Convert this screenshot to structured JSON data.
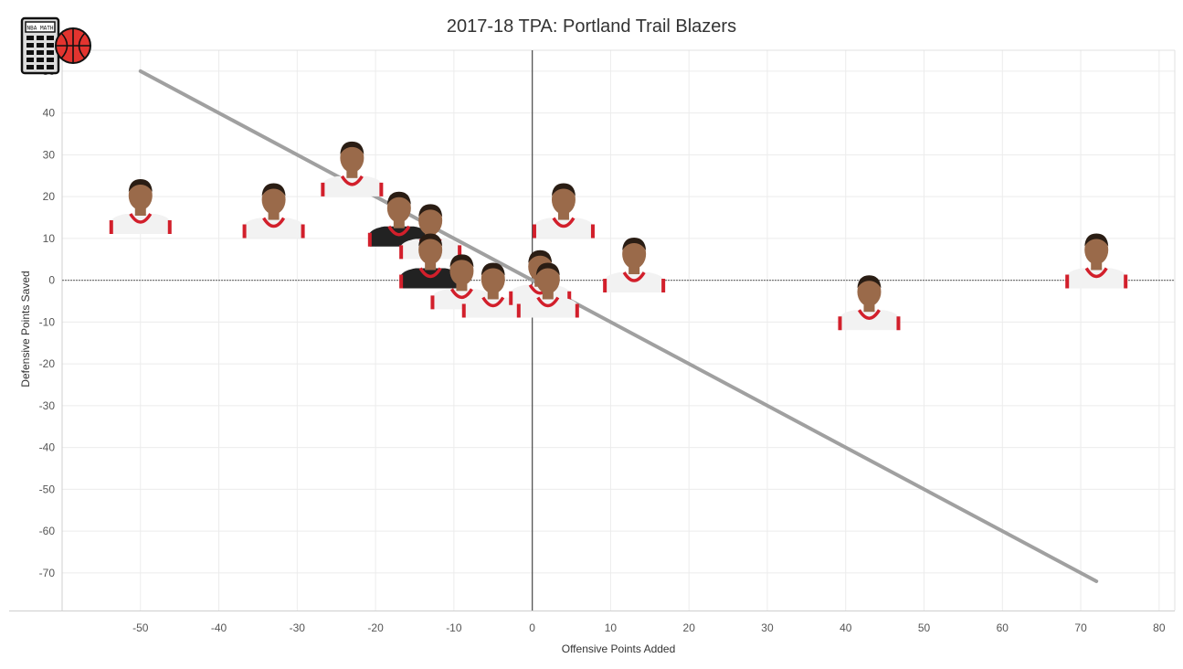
{
  "chart_data": {
    "type": "scatter",
    "title": "2017-18 TPA: Portland Trail Blazers",
    "xlabel": "Offensive Points Added",
    "ylabel": "Defensive Points Saved",
    "xlim": [
      -60,
      82
    ],
    "ylim": [
      -79,
      55
    ],
    "xticks": [
      -50,
      -40,
      -30,
      -20,
      -10,
      0,
      10,
      20,
      30,
      40,
      50,
      60,
      70,
      80
    ],
    "yticks": [
      50,
      40,
      30,
      20,
      10,
      0,
      -10,
      -20,
      -30,
      -40,
      -50,
      -60,
      -70
    ],
    "grid": true,
    "reference_line": {
      "from": [
        -50,
        50
      ],
      "to": [
        72,
        -72
      ]
    },
    "points": [
      {
        "x": -50,
        "y": 15,
        "jersey": "white"
      },
      {
        "x": -33,
        "y": 14,
        "jersey": "white"
      },
      {
        "x": -23,
        "y": 24,
        "jersey": "white"
      },
      {
        "x": -17,
        "y": 12,
        "jersey": "black"
      },
      {
        "x": -13,
        "y": 9,
        "jersey": "white"
      },
      {
        "x": -13,
        "y": 2,
        "jersey": "black"
      },
      {
        "x": -9,
        "y": -3,
        "jersey": "white"
      },
      {
        "x": -5,
        "y": -5,
        "jersey": "white"
      },
      {
        "x": 1,
        "y": -2,
        "jersey": "white"
      },
      {
        "x": 2,
        "y": -5,
        "jersey": "white"
      },
      {
        "x": 4,
        "y": 14,
        "jersey": "white"
      },
      {
        "x": 13,
        "y": 1,
        "jersey": "white"
      },
      {
        "x": 43,
        "y": -8,
        "jersey": "white"
      },
      {
        "x": 72,
        "y": 2,
        "jersey": "white"
      }
    ]
  },
  "logo": {
    "text": "NBA MATH",
    "icons": [
      "calculator-icon",
      "basketball-icon"
    ]
  },
  "colors": {
    "grid": "#ececec",
    "axis": "#555555",
    "trend_line": "#a0a0a0",
    "jersey_red": "#d21f2b",
    "jersey_white": "#f2f2f2",
    "jersey_black": "#222222",
    "skin": "#9a6a4a",
    "hair": "#2a1d14"
  }
}
